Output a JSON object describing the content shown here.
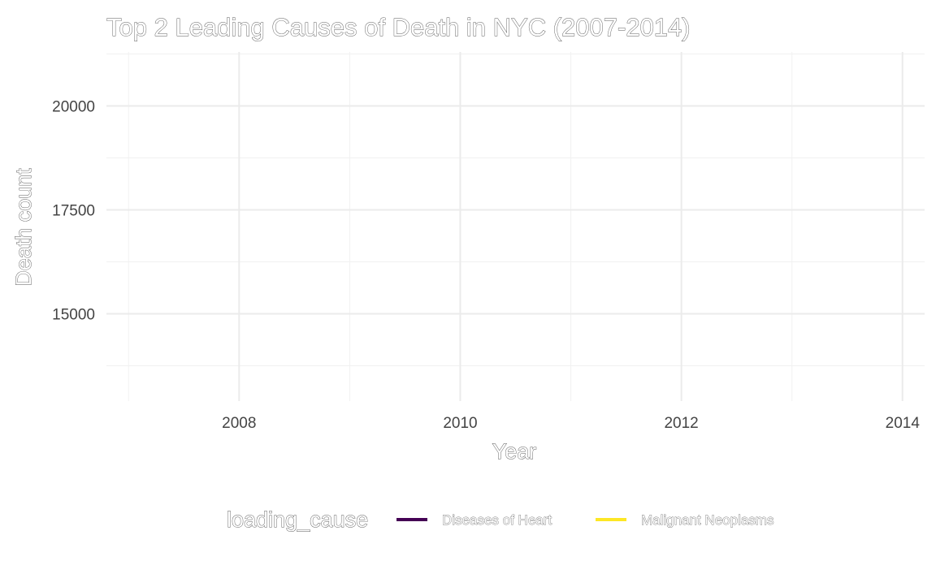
{
  "chart_data": {
    "type": "line",
    "title": "Top 2 Leading Causes of Death in NYC (2007-2014)",
    "xlabel": "Year",
    "ylabel": "Death count",
    "xlim": [
      2006.8,
      2014.2
    ],
    "ylim": [
      12900,
      21300
    ],
    "x_ticks": [
      2008,
      2010,
      2012,
      2014
    ],
    "x_tick_labels": [
      "2008",
      "2010",
      "2012",
      "2014"
    ],
    "x_minor_ticks": [
      2007,
      2009,
      2011,
      2013
    ],
    "y_ticks": [
      15000,
      17500,
      20000
    ],
    "y_tick_labels": [
      "15000",
      "17500",
      "20000"
    ],
    "y_minor_ticks": [
      13750,
      16250,
      18750,
      21250
    ],
    "grid": true,
    "legend": {
      "title": "loading_cause",
      "placement": "bottom",
      "entries": [
        {
          "label": "Diseases of Heart",
          "color": "#440154"
        },
        {
          "label": "Malignant Neoplasms",
          "color": "#FDE725"
        }
      ]
    },
    "series": []
  }
}
